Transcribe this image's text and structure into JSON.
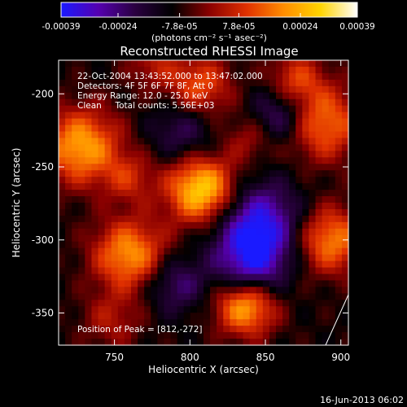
{
  "colorbar": {
    "tick_labels": [
      "-0.00039",
      "-0.00024",
      "-7.8e-05",
      "7.8e-05",
      "0.00024",
      "0.00039"
    ],
    "tick_values": [
      -0.00039,
      -0.00024,
      -7.8e-05,
      7.8e-05,
      0.00024,
      0.00039
    ],
    "range": [
      -0.00039,
      0.00039
    ],
    "unit_label": "(photons cm⁻² s⁻¹ asec⁻²)",
    "gradient": [
      "#1a1aff",
      "#5500b0",
      "#2a0040",
      "#000000",
      "#8a0000",
      "#e03000",
      "#ff8c00",
      "#ffd400",
      "#ffffff"
    ]
  },
  "chart_data": {
    "type": "heatmap",
    "title": "Reconstructed RHESSI Image",
    "xlabel": "Heliocentric X (arcsec)",
    "ylabel": "Heliocentric Y (arcsec)",
    "xlim": [
      713,
      905
    ],
    "ylim": [
      -372,
      -177
    ],
    "x_ticks": [
      750,
      800,
      850,
      900
    ],
    "y_ticks": [
      -200,
      -250,
      -300,
      -350
    ],
    "annotations": [
      "22-Oct-2004 13:43:52.000 to 13:47:02.000",
      "Detectors: 4F 5F 6F 7F 8F, Att 0",
      "Energy Range: 12.0 - 25.0 keV",
      "Clean     Total counts: 5.56E+03"
    ],
    "peak_label": "Position of Peak = [812,-272]",
    "sources": [
      {
        "x": 808,
        "y": -266,
        "intensity": 1.0,
        "width": 16
      },
      {
        "x": 837,
        "y": -345,
        "intensity": 0.88,
        "width": 14
      },
      {
        "x": 728,
        "y": -236,
        "intensity": 0.8,
        "width": 18
      },
      {
        "x": 760,
        "y": -310,
        "intensity": 0.75,
        "width": 17
      },
      {
        "x": 888,
        "y": -220,
        "intensity": 0.65,
        "width": 18
      },
      {
        "x": 893,
        "y": -300,
        "intensity": 0.7,
        "width": 16
      },
      {
        "x": 806,
        "y": -195,
        "intensity": 0.55,
        "width": 15
      },
      {
        "x": 870,
        "y": -190,
        "intensity": 0.45,
        "width": 13
      },
      {
        "x": 760,
        "y": -258,
        "intensity": 0.35,
        "width": 12
      },
      {
        "x": 748,
        "y": -355,
        "intensity": 0.3,
        "width": 14
      },
      {
        "x": 840,
        "y": -230,
        "intensity": 0.3,
        "width": 12
      },
      {
        "x": 775,
        "y": -180,
        "intensity": 0.3,
        "width": 12
      },
      {
        "x": 845,
        "y": -290,
        "intensity": -0.75,
        "width": 20
      },
      {
        "x": 840,
        "y": -320,
        "intensity": -0.55,
        "width": 16
      },
      {
        "x": 860,
        "y": -215,
        "intensity": -0.5,
        "width": 14
      },
      {
        "x": 790,
        "y": -330,
        "intensity": -0.4,
        "width": 14
      },
      {
        "x": 795,
        "y": -225,
        "intensity": -0.35,
        "width": 15
      }
    ]
  },
  "footer": {
    "date": "16-Jun-2013 06:02"
  }
}
